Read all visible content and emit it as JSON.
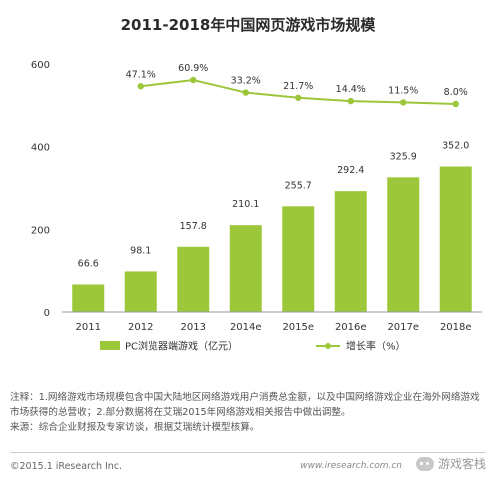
{
  "chart_data": {
    "type": "bar",
    "title": "2011-2018年中国网页游戏市场规模",
    "categories": [
      "2011",
      "2012",
      "2013",
      "2014e",
      "2015e",
      "2016e",
      "2017e",
      "2018e"
    ],
    "yticks": [
      "0",
      "200",
      "400",
      "600"
    ],
    "ylim": [
      0,
      600
    ],
    "grid": false,
    "legend_position": "bottom",
    "series": [
      {
        "name": "PC浏览器端游戏（亿元）",
        "type": "bar",
        "color": "#9dc73a",
        "values": [
          66.6,
          98.1,
          157.8,
          210.1,
          255.7,
          292.4,
          325.9,
          352.0
        ],
        "labels": [
          "66.6",
          "98.1",
          "157.8",
          "210.1",
          "255.7",
          "292.4",
          "325.9",
          "352.0"
        ]
      },
      {
        "name": "增长率（%）",
        "type": "line",
        "color": "#9dc73a",
        "values": [
          null,
          47.1,
          60.9,
          33.2,
          21.7,
          14.4,
          11.5,
          8.0
        ],
        "labels": [
          "",
          "47.1%",
          "60.9%",
          "33.2%",
          "21.7%",
          "14.4%",
          "11.5%",
          "8.0%"
        ]
      }
    ]
  },
  "notes": {
    "line1": "注释：1.网络游戏市场规模包含中国大陆地区网络游戏用户消费总金额，以及中国网络游戏企业在海外网络游戏市场获得的总营收；2.部分数据将在艾瑞2015年网络游戏相关报告中做出调整。",
    "line2": "来源：综合企业财报及专家访谈，根据艾瑞统计模型核算。"
  },
  "footer": {
    "copyright": "©2015.1 iResearch Inc.",
    "website": "www.iresearch.com.cn",
    "watermark": "游戏客栈",
    "watermark_icon": "wechat-icon"
  }
}
